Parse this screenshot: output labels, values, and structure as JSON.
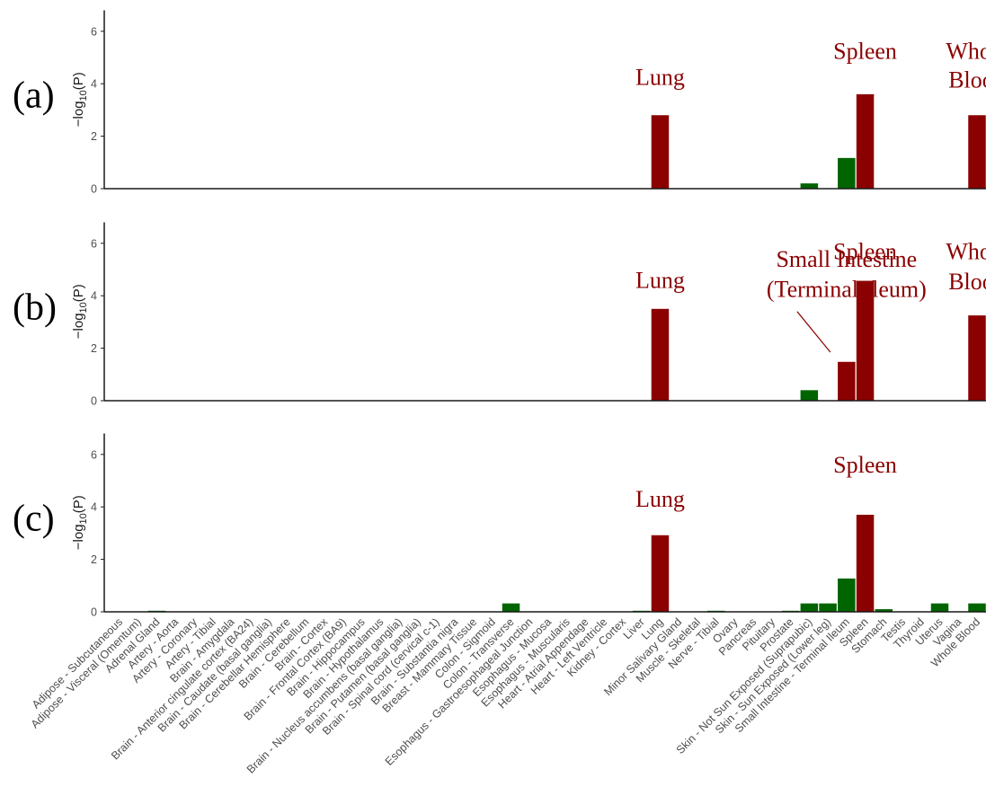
{
  "colors": {
    "significant": "#8b0000",
    "not_significant": "#006400",
    "axis": "#1a1a1a"
  },
  "chart_data": {
    "type": "bar",
    "categories": [
      "Adipose - Subcutaneous",
      "Adipose - Visceral (Omentum)",
      "Adrenal Gland",
      "Artery - Aorta",
      "Artery - Coronary",
      "Artery - Tibial",
      "Brain - Amygdala",
      "Brain - Anterior cingulate cortex (BA24)",
      "Brain - Caudate (basal ganglia)",
      "Brain - Cerebellar Hemisphere",
      "Brain - Cerebellum",
      "Brain - Cortex",
      "Brain - Frontal Cortex (BA9)",
      "Brain - Hippocampus",
      "Brain - Hypothalamus",
      "Brain - Nucleus accumbens (basal ganglia)",
      "Brain - Putamen (basal ganglia)",
      "Brain - Spinal cord (cervical c-1)",
      "Brain - Substantia nigra",
      "Breast - Mammary Tissue",
      "Colon - Sigmoid",
      "Colon - Transverse",
      "Esophagus - Gastroesophageal Junction",
      "Esophagus - Mucosa",
      "Esophagus - Muscularis",
      "Heart - Atrial Appendage",
      "Heart - Left Ventricle",
      "Kidney - Cortex",
      "Liver",
      "Lung",
      "Minor Salivary Gland",
      "Muscle - Skeletal",
      "Nerve - Tibial",
      "Ovary",
      "Pancreas",
      "Pituitary",
      "Prostate",
      "Skin - Not Sun Exposed (Suprapubic)",
      "Skin - Sun Exposed (Lower leg)",
      "Small Intestine - Terminal Ileum",
      "Spleen",
      "Stomach",
      "Testis",
      "Thyroid",
      "Uterus",
      "Vagina",
      "Whole Blood"
    ],
    "ylabel": "−log10(P)",
    "ylim": [
      0,
      6.8
    ],
    "yticks": [
      0,
      2,
      4,
      6
    ],
    "grid": false,
    "panels": [
      {
        "label": "(a)",
        "values": [
          0,
          0,
          0,
          0,
          0,
          0,
          0,
          0,
          0,
          0,
          0,
          0,
          0,
          0,
          0,
          0,
          0,
          0,
          0,
          0,
          0,
          0,
          0,
          0,
          0,
          0,
          0,
          0,
          0,
          2.8,
          0,
          0,
          0,
          0,
          0,
          0,
          0,
          0.2,
          0,
          1.17,
          3.6,
          0,
          0,
          0,
          0,
          0,
          2.8
        ],
        "significant": [
          "Lung",
          "Spleen",
          "Whole Blood"
        ],
        "annotations": [
          {
            "text": "Lung",
            "category": "Lung",
            "y": 3.95
          },
          {
            "text": "Spleen",
            "category": "Spleen",
            "y": 4.95
          },
          {
            "text": "Whole",
            "category": "Whole Blood",
            "y": 4.95
          },
          {
            "text": "Blood",
            "category": "Whole Blood",
            "y": 3.85
          }
        ]
      },
      {
        "label": "(b)",
        "values": [
          0,
          0,
          0,
          0,
          0,
          0,
          0,
          0,
          0,
          0,
          0,
          0,
          0,
          0,
          0,
          0,
          0,
          0,
          0,
          0,
          0,
          0,
          0,
          0,
          0,
          0,
          0,
          0,
          0,
          3.5,
          0,
          0,
          0,
          0,
          0,
          0,
          0,
          0.4,
          0,
          1.48,
          4.57,
          0,
          0,
          0,
          0,
          0,
          3.25
        ],
        "significant": [
          "Lung",
          "Small Intestine - Terminal Ileum",
          "Spleen",
          "Whole Blood"
        ],
        "annotations": [
          {
            "text": "Lung",
            "category": "Lung",
            "y": 4.3
          },
          {
            "text": "Small Intestine",
            "category": "Small Intestine - Terminal Ileum",
            "y": 5.1
          },
          {
            "text": "(Terminal Ileum)",
            "category": "Small Intestine - Terminal Ileum",
            "y": 3.95
          },
          {
            "text": "Spleen",
            "category": "Spleen",
            "y": 5.4
          },
          {
            "text": "Whole",
            "category": "Whole Blood",
            "y": 5.4
          },
          {
            "text": "Blood",
            "category": "Whole Blood",
            "y": 4.25
          }
        ]
      },
      {
        "label": "(c)",
        "values": [
          0,
          0,
          0.04,
          0,
          0,
          0,
          0,
          0,
          0,
          0,
          0,
          0,
          0,
          0,
          0,
          0,
          0,
          0,
          0,
          0,
          0,
          0.32,
          0,
          0,
          0,
          0,
          0,
          0,
          0.04,
          2.92,
          0,
          0,
          0.04,
          0,
          0,
          0,
          0.04,
          0.32,
          0.32,
          1.27,
          3.7,
          0.1,
          0,
          0,
          0.32,
          0,
          0.32
        ],
        "significant": [
          "Lung",
          "Spleen"
        ],
        "annotations": [
          {
            "text": "Lung",
            "category": "Lung",
            "y": 4.0
          },
          {
            "text": "Spleen",
            "category": "Spleen",
            "y": 5.3
          }
        ]
      }
    ]
  }
}
